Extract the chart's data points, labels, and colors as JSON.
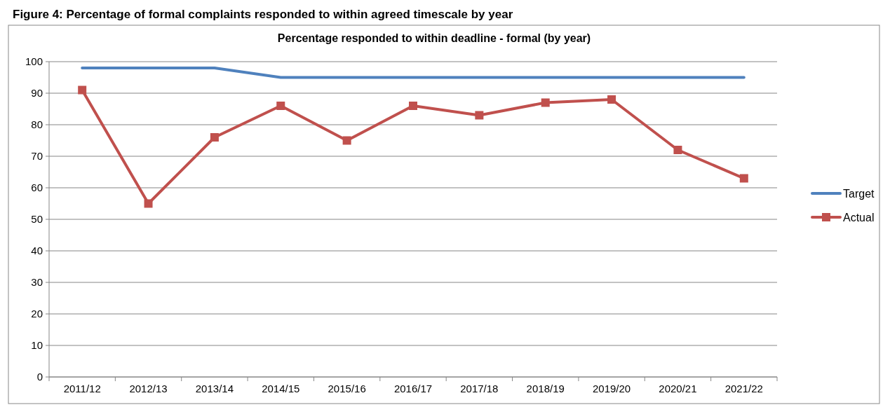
{
  "chart_data": {
    "type": "line",
    "title": "Percentage responded to within deadline - formal (by year)",
    "annotations": [
      "Figure 4: Percentage of formal complaints responded to within agreed timescale by year"
    ],
    "categories": [
      "2011/12",
      "2012/13",
      "2013/14",
      "2014/15",
      "2015/16",
      "2016/17",
      "2017/18",
      "2018/19",
      "2019/20",
      "2020/21",
      "2021/22"
    ],
    "series": [
      {
        "name": "Target",
        "color": "#4f81bd",
        "marker": "none",
        "values": [
          98,
          98,
          98,
          95,
          95,
          95,
          95,
          95,
          95,
          95,
          95
        ]
      },
      {
        "name": "Actual",
        "color": "#c0504d",
        "marker": "square",
        "values": [
          91,
          55,
          76,
          86,
          75,
          86,
          83,
          87,
          88,
          72,
          63
        ]
      }
    ],
    "ylim": [
      0,
      100
    ],
    "yticks": [
      0,
      10,
      20,
      30,
      40,
      50,
      60,
      70,
      80,
      90,
      100
    ],
    "grid": "y",
    "legend": "right"
  }
}
